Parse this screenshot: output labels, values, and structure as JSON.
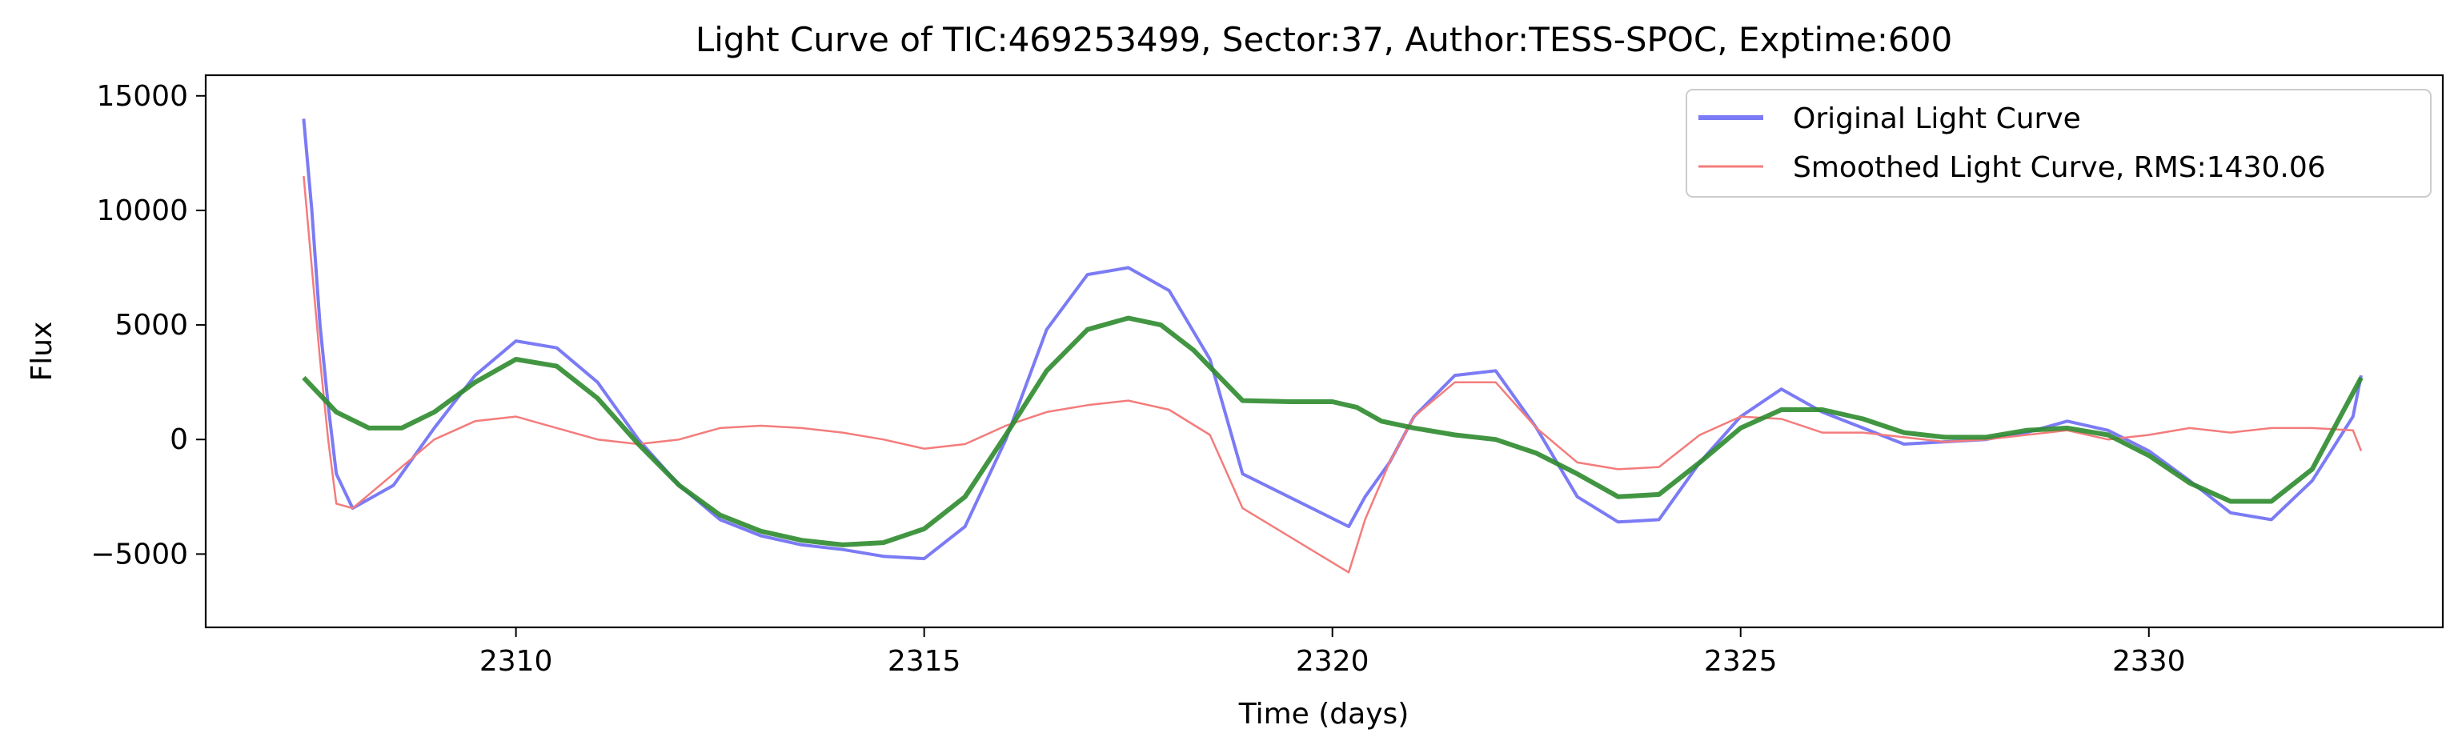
{
  "chart_data": {
    "type": "line",
    "title": "Light Curve of TIC:469253499, Sector:37, Author:TESS-SPOC, Exptime:600",
    "xlabel": "Time (days)",
    "ylabel": "Flux",
    "xlim": [
      2306.2,
      2333.6
    ],
    "ylim": [
      -8200,
      15900
    ],
    "xticks": [
      2310,
      2315,
      2320,
      2325,
      2330
    ],
    "yticks": [
      -5000,
      0,
      5000,
      10000,
      15000
    ],
    "xtick_labels": [
      "2310",
      "2315",
      "2320",
      "2325",
      "2330"
    ],
    "ytick_labels": [
      "−5000",
      "0",
      "5000",
      "10000",
      "15000"
    ],
    "grid": false,
    "legend_position": "top-right",
    "series": [
      {
        "name": "Original Light Curve",
        "color": "#7b7bf5",
        "x": [
          2307.4,
          2307.5,
          2307.6,
          2307.7,
          2307.8,
          2308.0,
          2308.5,
          2309.0,
          2309.5,
          2310.0,
          2310.5,
          2311.0,
          2311.5,
          2312.0,
          2312.5,
          2313.0,
          2313.5,
          2314.0,
          2314.5,
          2315.0,
          2315.5,
          2316.0,
          2316.5,
          2317.0,
          2317.5,
          2318.0,
          2318.5,
          2318.9,
          2320.2,
          2320.4,
          2320.7,
          2321.0,
          2321.5,
          2322.0,
          2322.5,
          2323.0,
          2323.5,
          2324.0,
          2324.5,
          2325.0,
          2325.5,
          2326.0,
          2326.5,
          2327.0,
          2327.5,
          2328.0,
          2328.5,
          2329.0,
          2329.5,
          2330.0,
          2330.5,
          2331.0,
          2331.5,
          2332.0,
          2332.5,
          2332.6
        ],
        "y": [
          14000,
          10000,
          5000,
          1500,
          -1500,
          -3000,
          -2000,
          500,
          2800,
          4300,
          4000,
          2500,
          0,
          -2000,
          -3500,
          -4200,
          -4600,
          -4800,
          -5100,
          -5200,
          -3800,
          0,
          4800,
          7200,
          7500,
          6500,
          3500,
          -1500,
          -3800,
          -2500,
          -1000,
          1000,
          2800,
          3000,
          500,
          -2500,
          -3600,
          -3500,
          -1000,
          1000,
          2200,
          1200,
          500,
          -200,
          -100,
          0,
          300,
          800,
          400,
          -500,
          -1800,
          -3200,
          -3500,
          -1800,
          1000,
          2800
        ]
      },
      {
        "name": "Smoothed Light Curve, RMS:1430.06",
        "color": "#f47c7c",
        "x": [
          2307.4,
          2307.5,
          2307.6,
          2307.7,
          2307.8,
          2308.0,
          2308.5,
          2309.0,
          2309.5,
          2310.0,
          2310.5,
          2311.0,
          2311.5,
          2312.0,
          2312.5,
          2313.0,
          2313.5,
          2314.0,
          2314.5,
          2315.0,
          2315.5,
          2316.0,
          2316.5,
          2317.0,
          2317.5,
          2318.0,
          2318.5,
          2318.9,
          2320.2,
          2320.4,
          2320.7,
          2321.0,
          2321.5,
          2322.0,
          2322.5,
          2323.0,
          2323.5,
          2324.0,
          2324.5,
          2325.0,
          2325.5,
          2326.0,
          2326.5,
          2327.0,
          2327.5,
          2328.0,
          2328.5,
          2329.0,
          2329.5,
          2330.0,
          2330.5,
          2331.0,
          2331.5,
          2332.0,
          2332.5,
          2332.6
        ],
        "y": [
          11500,
          7500,
          3500,
          0,
          -2800,
          -3000,
          -1500,
          0,
          800,
          1000,
          500,
          0,
          -200,
          0,
          500,
          600,
          500,
          300,
          0,
          -400,
          -200,
          600,
          1200,
          1500,
          1700,
          1300,
          200,
          -3000,
          -5800,
          -3500,
          -1000,
          1000,
          2500,
          2500,
          500,
          -1000,
          -1300,
          -1200,
          200,
          1000,
          900,
          300,
          300,
          100,
          -100,
          0,
          200,
          400,
          0,
          200,
          500,
          300,
          500,
          500,
          400,
          -500
        ]
      },
      {
        "name": "",
        "color": "#2e8b2e",
        "x": [
          2307.4,
          2307.8,
          2308.2,
          2308.6,
          2309.0,
          2309.5,
          2310.0,
          2310.5,
          2311.0,
          2311.5,
          2312.0,
          2312.5,
          2313.0,
          2313.5,
          2314.0,
          2314.5,
          2315.0,
          2315.5,
          2316.0,
          2316.5,
          2317.0,
          2317.5,
          2317.9,
          2318.3,
          2318.9,
          2319.5,
          2320.0,
          2320.3,
          2320.6,
          2321.0,
          2321.5,
          2322.0,
          2322.5,
          2323.0,
          2323.5,
          2324.0,
          2324.5,
          2325.0,
          2325.5,
          2326.0,
          2326.5,
          2327.0,
          2327.5,
          2328.0,
          2328.5,
          2329.0,
          2329.5,
          2330.0,
          2330.5,
          2331.0,
          2331.5,
          2332.0,
          2332.6
        ],
        "y": [
          2700,
          1200,
          500,
          500,
          1200,
          2500,
          3500,
          3200,
          1800,
          -200,
          -2000,
          -3300,
          -4000,
          -4400,
          -4600,
          -4500,
          -3900,
          -2500,
          200,
          3000,
          4800,
          5300,
          5000,
          3900,
          1700,
          1650,
          1650,
          1400,
          800,
          500,
          200,
          0,
          -600,
          -1500,
          -2500,
          -2400,
          -1000,
          500,
          1300,
          1300,
          900,
          300,
          100,
          100,
          400,
          500,
          200,
          -700,
          -1900,
          -2700,
          -2700,
          -1300,
          2700
        ]
      }
    ]
  }
}
